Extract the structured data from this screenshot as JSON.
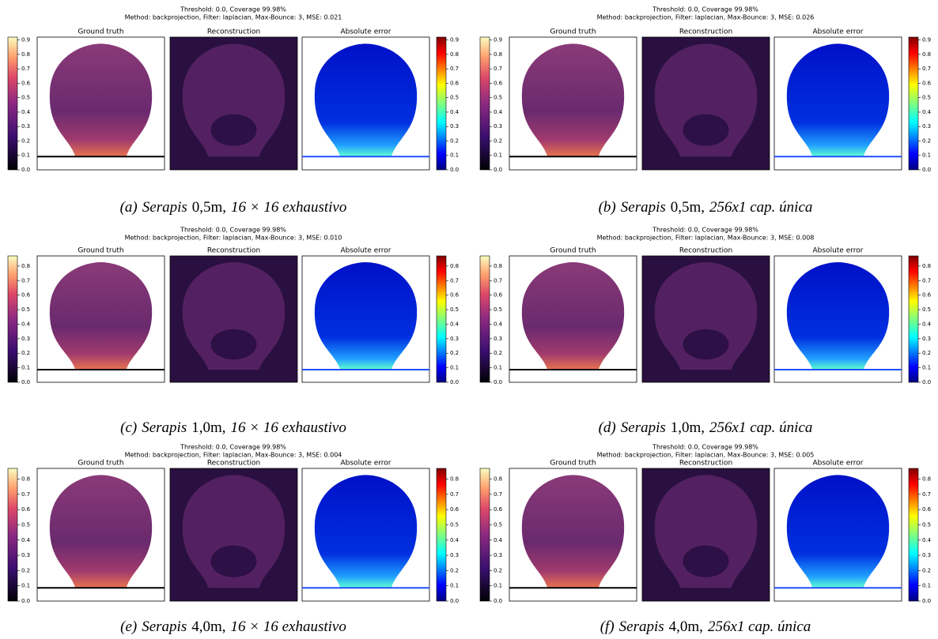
{
  "panels": [
    {
      "title_lines": [
        "Threshold: 0.0, Coverage 99.98%",
        "Method: backprojection, Filter: laplacian, Max-Bounce: 3, MSE: 0.021"
      ],
      "subplot_titles": [
        "Ground truth",
        "Reconstruction",
        "Absolute error"
      ],
      "colorbar_lim": [
        0,
        0.92
      ],
      "colorbar_ticks": [
        {
          "value": 0,
          "label": "0.0"
        },
        0.1,
        0.2,
        0.3,
        0.4,
        0.5,
        0.6,
        0.7,
        0.8,
        0.9
      ],
      "caption": {
        "label": "(a)",
        "name": "Serapis",
        "distance": "0,5m,",
        "setup": "16 × 16 exhaustivo"
      }
    },
    {
      "title_lines": [
        "Threshold: 0.0, Coverage 99.98%",
        "Method: backprojection, Filter: laplacian, Max-Bounce: 3, MSE: 0.026"
      ],
      "subplot_titles": [
        "Ground truth",
        "Reconstruction",
        "Absolute error"
      ],
      "colorbar_lim": [
        0,
        0.92
      ],
      "colorbar_ticks": [
        {
          "value": 0,
          "label": "0.0"
        },
        0.1,
        0.2,
        0.3,
        0.4,
        0.5,
        0.6,
        0.7,
        0.8,
        0.9
      ],
      "caption": {
        "label": "(b)",
        "name": "Serapis",
        "distance": "0,5m,",
        "setup": "256x1 cap. única"
      }
    },
    {
      "title_lines": [
        "Threshold: 0.0, Coverage 99.98%",
        "Method: backprojection, Filter: laplacian, Max-Bounce: 3, MSE: 0.010"
      ],
      "subplot_titles": [
        "Ground truth",
        "Reconstruction",
        "Absolute error"
      ],
      "colorbar_lim": [
        0,
        0.87
      ],
      "colorbar_ticks": [
        {
          "value": 0,
          "label": "0.0"
        },
        0.1,
        0.2,
        0.3,
        0.4,
        0.5,
        0.6,
        0.7,
        0.8
      ],
      "caption": {
        "label": "(c)",
        "name": "Serapis",
        "distance": "1,0m,",
        "setup": "16 × 16 exhaustivo"
      }
    },
    {
      "title_lines": [
        "Threshold: 0.0, Coverage 99.98%",
        "Method: backprojection, Filter: laplacian, Max-Bounce: 3, MSE: 0.008"
      ],
      "subplot_titles": [
        "Ground truth",
        "Reconstruction",
        "Absolute error"
      ],
      "colorbar_lim": [
        0,
        0.87
      ],
      "colorbar_ticks": [
        {
          "value": 0,
          "label": "0.0"
        },
        0.1,
        0.2,
        0.3,
        0.4,
        0.5,
        0.6,
        0.7,
        0.8
      ],
      "caption": {
        "label": "(d)",
        "name": "Serapis",
        "distance": "1,0m,",
        "setup": "256x1 cap. única"
      }
    },
    {
      "title_lines": [
        "Threshold: 0.0, Coverage 99.98%",
        "Method: backprojection, Filter: laplacian, Max-Bounce: 3, MSE: 0.004"
      ],
      "subplot_titles": [
        "Ground truth",
        "Reconstruction",
        "Absolute error"
      ],
      "colorbar_lim": [
        0,
        0.87
      ],
      "colorbar_ticks": [
        {
          "value": 0,
          "label": "0.0"
        },
        0.1,
        0.2,
        0.3,
        0.4,
        0.5,
        0.6,
        0.7,
        0.8
      ],
      "caption": {
        "label": "(e)",
        "name": "Serapis",
        "distance": "4,0m,",
        "setup": "16 × 16 exhaustivo"
      }
    },
    {
      "title_lines": [
        "Threshold: 0.0, Coverage 99.98%",
        "Method: backprojection, Filter: laplacian, Max-Bounce: 3, MSE: 0.005"
      ],
      "subplot_titles": [
        "Ground truth",
        "Reconstruction",
        "Absolute error"
      ],
      "colorbar_lim": [
        0,
        0.87
      ],
      "colorbar_ticks": [
        {
          "value": 0,
          "label": "0.0"
        },
        0.1,
        0.2,
        0.3,
        0.4,
        0.5,
        0.6,
        0.7,
        0.8
      ],
      "caption": {
        "label": "(f)",
        "name": "Serapis",
        "distance": "4,0m,",
        "setup": "256x1 cap. única"
      }
    }
  ]
}
